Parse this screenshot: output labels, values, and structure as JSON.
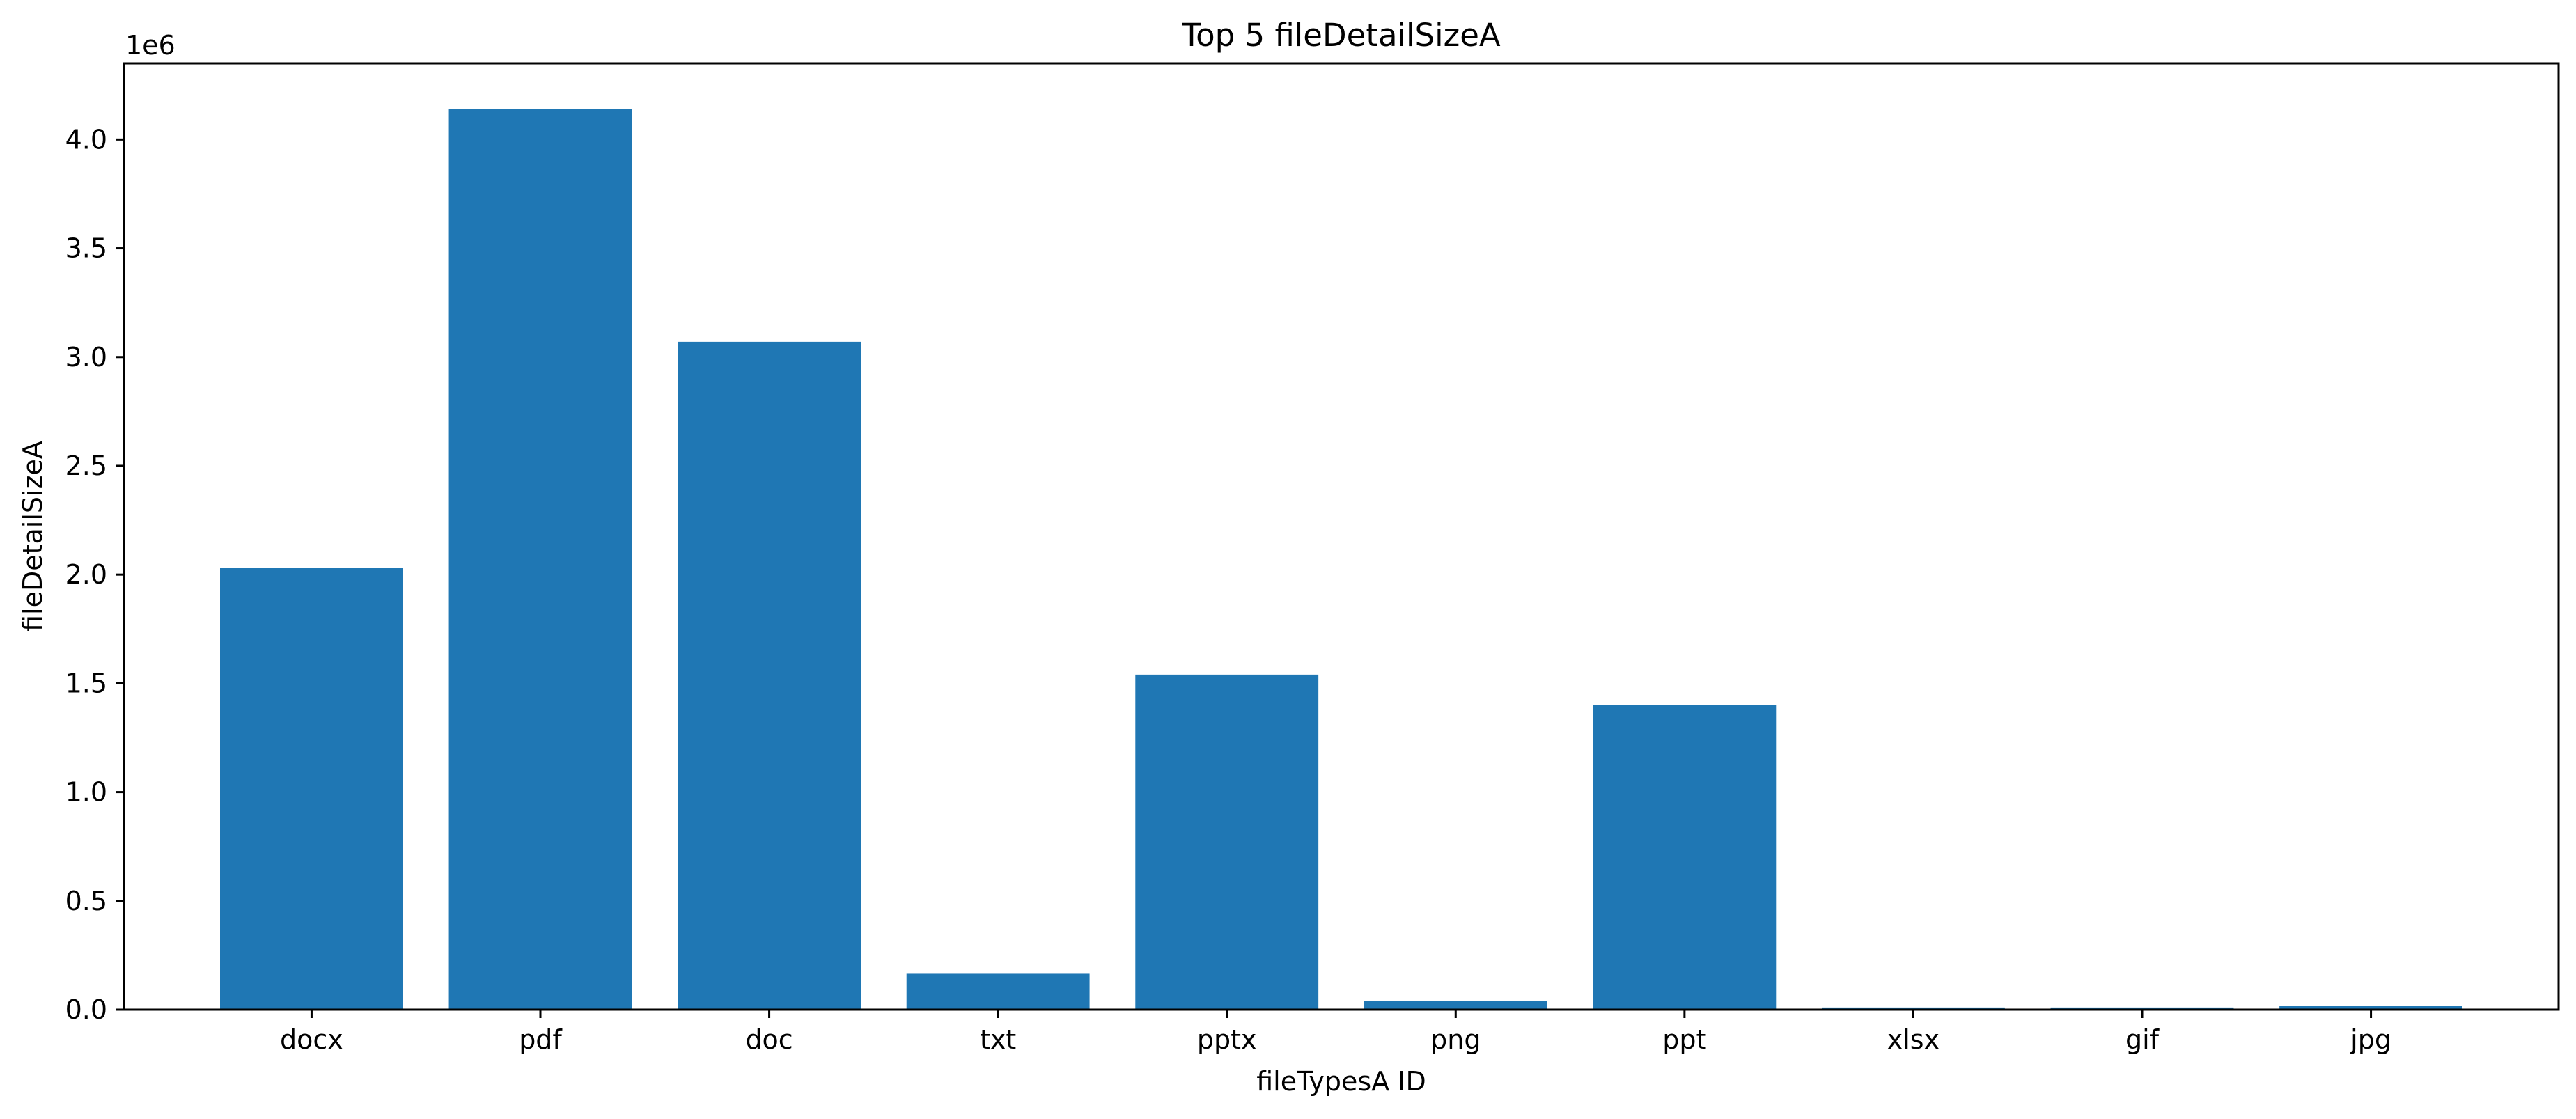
{
  "chart_data": {
    "type": "bar",
    "title": "Top 5 fileDetailSizeA",
    "xlabel": "fileTypesA ID",
    "ylabel": "fileDetailSizeA",
    "y_offset_label": "1e6",
    "categories": [
      "docx",
      "pdf",
      "doc",
      "txt",
      "pptx",
      "png",
      "ppt",
      "xlsx",
      "gif",
      "jpg"
    ],
    "values": [
      2030000,
      4140000,
      3070000,
      165000,
      1540000,
      40000,
      1400000,
      10000,
      10000,
      16000
    ],
    "ylim": [
      0,
      4350000
    ],
    "yticks": [
      0,
      500000,
      1000000,
      1500000,
      2000000,
      2500000,
      3000000,
      3500000,
      4000000
    ],
    "ytick_labels": [
      "0.0",
      "0.5",
      "1.0",
      "1.5",
      "2.0",
      "2.5",
      "3.0",
      "3.5",
      "4.0"
    ],
    "grid": false,
    "legend": "none",
    "bar_color": "#1f77b4"
  }
}
